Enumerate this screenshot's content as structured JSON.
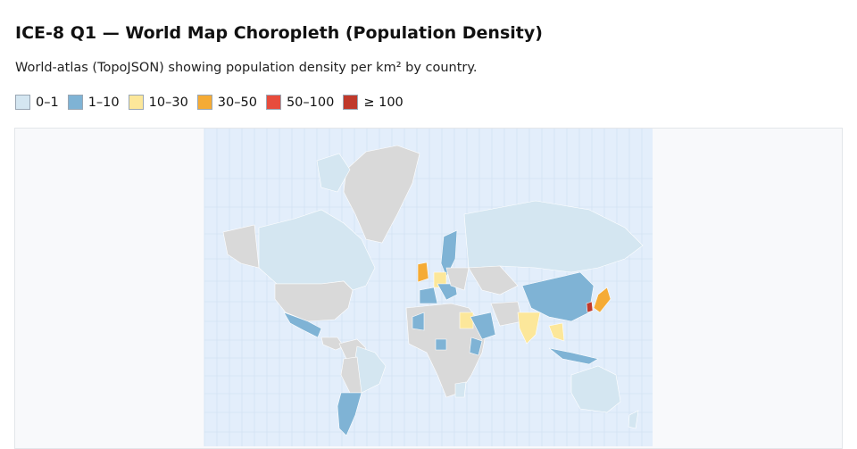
{
  "header": {
    "title": "ICE-8 Q1 — World Map Choropleth (Population Density)",
    "subtitle": "World-atlas (TopoJSON) showing population density per km² by country."
  },
  "legend": [
    {
      "label": "0–1",
      "color": "#d4e6f1"
    },
    {
      "label": "1–10",
      "color": "#7fb3d5"
    },
    {
      "label": "10–30",
      "color": "#fce79a"
    },
    {
      "label": "30–50",
      "color": "#f5ab35"
    },
    {
      "label": "50–100",
      "color": "#e74c3c"
    },
    {
      "label": "≥ 100",
      "color": "#c0392b"
    }
  ]
}
